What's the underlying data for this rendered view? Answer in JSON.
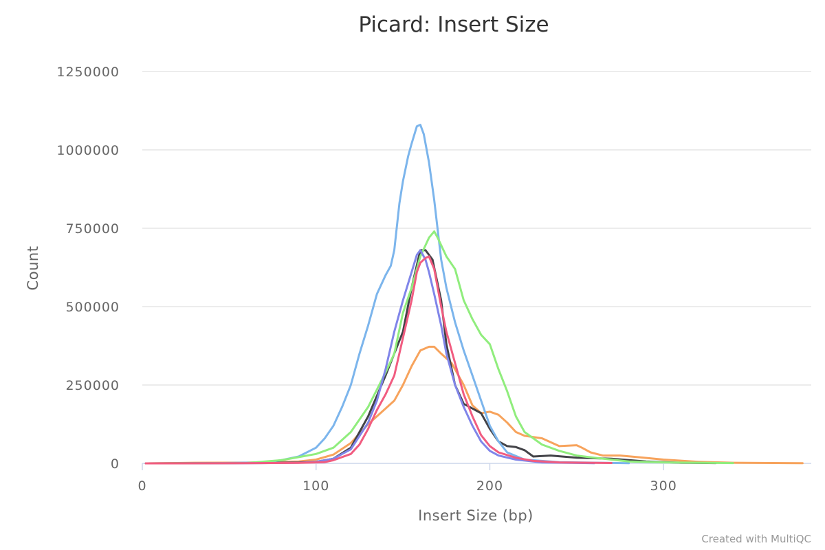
{
  "chart_data": {
    "type": "line",
    "title": "Picard: Insert Size",
    "xlabel": "Insert Size (bp)",
    "ylabel": "Count",
    "xlim": [
      0,
      385
    ],
    "ylim": [
      0,
      1250000
    ],
    "x_ticks": [
      0,
      100,
      200,
      300
    ],
    "y_ticks": [
      0,
      250000,
      500000,
      750000,
      1000000,
      1250000
    ],
    "grid": true,
    "legend": "none",
    "credit": "Created with MultiQC",
    "series": [
      {
        "color": "#f7a35c",
        "points": [
          [
            2,
            0
          ],
          [
            30,
            2000
          ],
          [
            60,
            2500
          ],
          [
            90,
            6000
          ],
          [
            100,
            12000
          ],
          [
            110,
            28000
          ],
          [
            120,
            65000
          ],
          [
            130,
            125000
          ],
          [
            140,
            175000
          ],
          [
            145,
            200000
          ],
          [
            150,
            250000
          ],
          [
            155,
            310000
          ],
          [
            160,
            360000
          ],
          [
            165,
            372000
          ],
          [
            168,
            372000
          ],
          [
            172,
            350000
          ],
          [
            178,
            320000
          ],
          [
            185,
            250000
          ],
          [
            190,
            185000
          ],
          [
            195,
            160000
          ],
          [
            200,
            165000
          ],
          [
            205,
            155000
          ],
          [
            210,
            130000
          ],
          [
            215,
            100000
          ],
          [
            220,
            88000
          ],
          [
            230,
            80000
          ],
          [
            240,
            55000
          ],
          [
            250,
            58000
          ],
          [
            253,
            50000
          ],
          [
            258,
            35000
          ],
          [
            265,
            25000
          ],
          [
            275,
            25000
          ],
          [
            285,
            20000
          ],
          [
            300,
            12000
          ],
          [
            320,
            5000
          ],
          [
            340,
            2000
          ],
          [
            380,
            500
          ]
        ]
      },
      {
        "color": "#434348",
        "points": [
          [
            2,
            0
          ],
          [
            60,
            1000
          ],
          [
            90,
            3000
          ],
          [
            100,
            5000
          ],
          [
            110,
            15000
          ],
          [
            120,
            50000
          ],
          [
            130,
            150000
          ],
          [
            140,
            280000
          ],
          [
            150,
            420000
          ],
          [
            155,
            560000
          ],
          [
            160,
            680000
          ],
          [
            163,
            680000
          ],
          [
            167,
            650000
          ],
          [
            172,
            520000
          ],
          [
            175,
            380000
          ],
          [
            180,
            250000
          ],
          [
            185,
            190000
          ],
          [
            190,
            175000
          ],
          [
            195,
            160000
          ],
          [
            200,
            110000
          ],
          [
            205,
            70000
          ],
          [
            210,
            55000
          ],
          [
            215,
            52000
          ],
          [
            220,
            42000
          ],
          [
            225,
            22000
          ],
          [
            235,
            25000
          ],
          [
            250,
            18000
          ],
          [
            270,
            15000
          ],
          [
            290,
            6000
          ],
          [
            310,
            2000
          ],
          [
            330,
            800
          ]
        ]
      },
      {
        "color": "#7cb5ec",
        "points": [
          [
            2,
            0
          ],
          [
            40,
            500
          ],
          [
            70,
            3000
          ],
          [
            80,
            10000
          ],
          [
            90,
            22000
          ],
          [
            100,
            50000
          ],
          [
            105,
            80000
          ],
          [
            110,
            120000
          ],
          [
            115,
            180000
          ],
          [
            120,
            250000
          ],
          [
            125,
            350000
          ],
          [
            130,
            440000
          ],
          [
            135,
            540000
          ],
          [
            140,
            600000
          ],
          [
            143,
            630000
          ],
          [
            145,
            680000
          ],
          [
            148,
            830000
          ],
          [
            150,
            900000
          ],
          [
            153,
            980000
          ],
          [
            155,
            1020000
          ],
          [
            158,
            1075000
          ],
          [
            160,
            1080000
          ],
          [
            162,
            1050000
          ],
          [
            165,
            960000
          ],
          [
            168,
            840000
          ],
          [
            172,
            650000
          ],
          [
            175,
            560000
          ],
          [
            180,
            450000
          ],
          [
            185,
            360000
          ],
          [
            190,
            280000
          ],
          [
            195,
            200000
          ],
          [
            200,
            120000
          ],
          [
            205,
            70000
          ],
          [
            210,
            35000
          ],
          [
            220,
            12000
          ],
          [
            240,
            4000
          ],
          [
            280,
            500
          ]
        ]
      },
      {
        "color": "#90ed7d",
        "points": [
          [
            2,
            0
          ],
          [
            60,
            1000
          ],
          [
            80,
            10000
          ],
          [
            90,
            20000
          ],
          [
            100,
            30000
          ],
          [
            110,
            50000
          ],
          [
            120,
            100000
          ],
          [
            130,
            180000
          ],
          [
            140,
            290000
          ],
          [
            145,
            350000
          ],
          [
            150,
            480000
          ],
          [
            155,
            560000
          ],
          [
            160,
            660000
          ],
          [
            165,
            720000
          ],
          [
            168,
            740000
          ],
          [
            170,
            720000
          ],
          [
            175,
            660000
          ],
          [
            180,
            620000
          ],
          [
            185,
            520000
          ],
          [
            190,
            460000
          ],
          [
            195,
            410000
          ],
          [
            200,
            380000
          ],
          [
            205,
            300000
          ],
          [
            210,
            230000
          ],
          [
            215,
            150000
          ],
          [
            220,
            100000
          ],
          [
            230,
            60000
          ],
          [
            240,
            40000
          ],
          [
            250,
            25000
          ],
          [
            260,
            18000
          ],
          [
            270,
            12000
          ],
          [
            280,
            6000
          ],
          [
            300,
            3000
          ],
          [
            340,
            800
          ]
        ]
      },
      {
        "color": "#8085e9",
        "points": [
          [
            2,
            0
          ],
          [
            60,
            500
          ],
          [
            90,
            2000
          ],
          [
            100,
            5000
          ],
          [
            110,
            15000
          ],
          [
            120,
            45000
          ],
          [
            130,
            130000
          ],
          [
            135,
            200000
          ],
          [
            140,
            300000
          ],
          [
            145,
            420000
          ],
          [
            150,
            520000
          ],
          [
            155,
            610000
          ],
          [
            158,
            665000
          ],
          [
            160,
            680000
          ],
          [
            163,
            650000
          ],
          [
            165,
            610000
          ],
          [
            168,
            540000
          ],
          [
            172,
            440000
          ],
          [
            175,
            350000
          ],
          [
            180,
            250000
          ],
          [
            185,
            180000
          ],
          [
            190,
            120000
          ],
          [
            195,
            70000
          ],
          [
            200,
            40000
          ],
          [
            205,
            25000
          ],
          [
            215,
            12000
          ],
          [
            230,
            3000
          ],
          [
            260,
            500
          ]
        ]
      },
      {
        "color": "#f15c80",
        "points": [
          [
            2,
            0
          ],
          [
            60,
            500
          ],
          [
            90,
            1500
          ],
          [
            105,
            4000
          ],
          [
            110,
            10000
          ],
          [
            120,
            30000
          ],
          [
            125,
            60000
          ],
          [
            130,
            110000
          ],
          [
            135,
            170000
          ],
          [
            140,
            220000
          ],
          [
            145,
            280000
          ],
          [
            150,
            400000
          ],
          [
            155,
            520000
          ],
          [
            158,
            610000
          ],
          [
            160,
            640000
          ],
          [
            163,
            655000
          ],
          [
            165,
            660000
          ],
          [
            168,
            620000
          ],
          [
            172,
            500000
          ],
          [
            175,
            420000
          ],
          [
            180,
            320000
          ],
          [
            185,
            220000
          ],
          [
            190,
            150000
          ],
          [
            195,
            90000
          ],
          [
            200,
            55000
          ],
          [
            205,
            35000
          ],
          [
            215,
            18000
          ],
          [
            225,
            8000
          ],
          [
            240,
            3000
          ],
          [
            270,
            1000
          ]
        ]
      }
    ]
  }
}
